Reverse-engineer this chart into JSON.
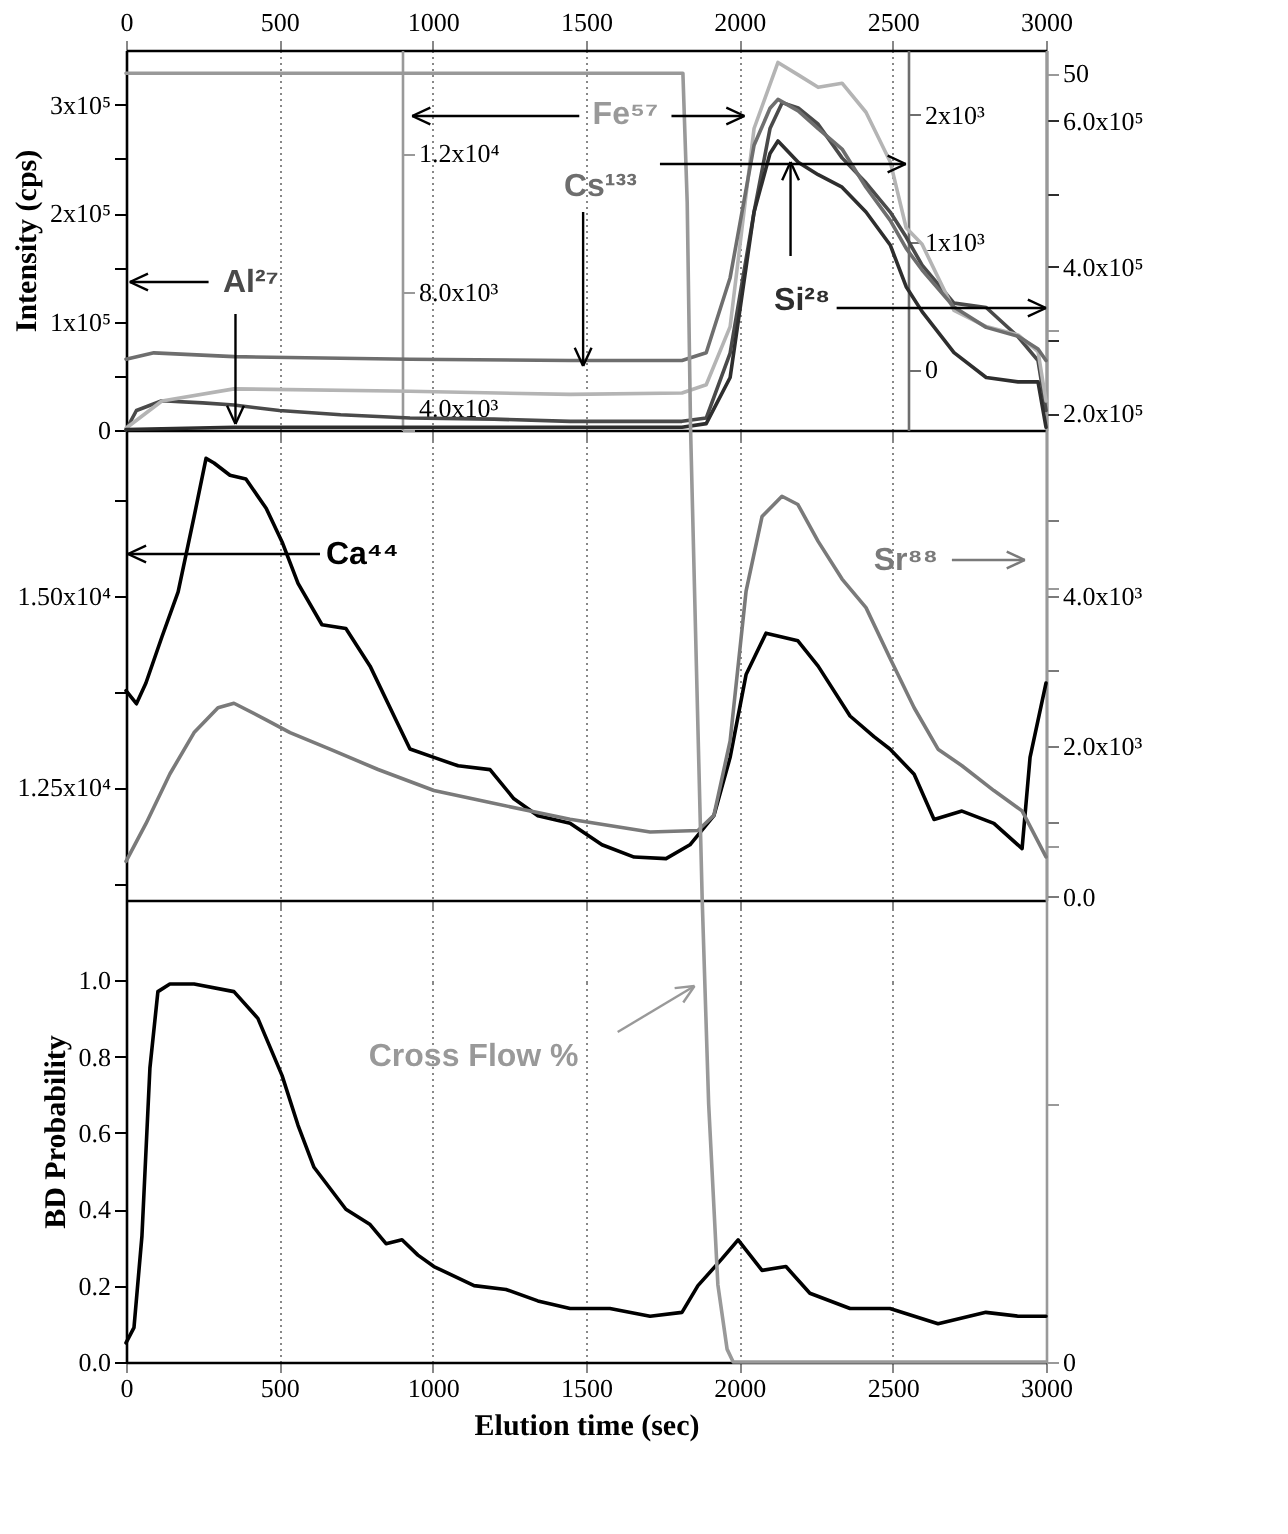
{
  "chart_data": [
    {
      "type": "line",
      "ylabel": "Intensity (cps)",
      "xlim": [
        0,
        3000
      ],
      "xticks": [
        0,
        500,
        1000,
        1500,
        2000,
        2500,
        3000
      ],
      "grid": "x",
      "ylim": [
        0,
        350500
      ],
      "yticks": [
        0,
        {
          "value": 50000,
          "label": null
        },
        {
          "value": 100000,
          "label": "1x10⁵"
        },
        {
          "value": 150000,
          "label": null
        },
        {
          "value": 200000,
          "label": "2x10⁵"
        },
        {
          "value": 250000,
          "label": null
        },
        {
          "value": 300000,
          "label": "3x10⁵"
        }
      ],
      "y2lim": [
        177300,
        696300
      ],
      "y2ticks": [
        {
          "value": 200000,
          "label": "2.0x10⁵"
        },
        {
          "value": 300000,
          "label": null
        },
        {
          "value": 400000,
          "label": "4.0x10⁵"
        },
        {
          "value": 500000,
          "label": null
        },
        {
          "value": 600000,
          "label": "6.0x10⁵"
        }
      ],
      "y3lim": [
        4000,
        14990
      ],
      "y3ticks": [
        {
          "value": 4000,
          "label": "4.0x10³"
        },
        {
          "value": 8000,
          "label": "8.0x10³"
        },
        {
          "value": 12000,
          "label": "1.2x10⁴"
        }
      ],
      "series": [
        {
          "name": "Al²⁷",
          "color": "#4a4a4a",
          "x": [
            0,
            34,
            117,
            250,
            352,
            500,
            700,
            926,
            1200,
            1448,
            1813,
            1892,
            1970,
            2048,
            2100,
            2140,
            2192,
            2257,
            2335,
            2413,
            2492,
            2544,
            2596,
            2700,
            2805,
            2909,
            2974,
            3000
          ],
          "values": [
            0,
            18000,
            27000,
            25000,
            23000,
            18000,
            14000,
            11000,
            10000,
            8000,
            8000,
            11000,
            71000,
            201000,
            278000,
            302000,
            297000,
            282000,
            251000,
            228000,
            201000,
            178000,
            152000,
            117000,
            113000,
            86000,
            64000,
            18000
          ]
        },
        {
          "name": "Fe⁵⁷",
          "color": "#b4b4b4",
          "axis": "y3",
          "x": [
            0,
            117,
            352,
            926,
            1448,
            1813,
            1892,
            1970,
            2048,
            2126,
            2192,
            2257,
            2335,
            2413,
            2492,
            2544,
            2596,
            2700,
            2805,
            2909,
            2974,
            3000
          ],
          "values": [
            4050,
            4840,
            5190,
            5120,
            5030,
            5070,
            5310,
            6990,
            12720,
            14630,
            14270,
            13910,
            14030,
            13190,
            11760,
            9850,
            9370,
            7460,
            6990,
            6750,
            6270,
            4840
          ]
        },
        {
          "name": "Si²⁸",
          "color": "#2e2e2e",
          "axis": "y2",
          "x": [
            0,
            352,
            926,
            1448,
            1813,
            1892,
            1970,
            2048,
            2100,
            2126,
            2192,
            2257,
            2335,
            2413,
            2492,
            2544,
            2596,
            2700,
            2805,
            2909,
            2974,
            3000
          ],
          "values": [
            178000,
            181000,
            181000,
            181000,
            181000,
            186000,
            249000,
            475000,
            555000,
            572000,
            543000,
            526000,
            509000,
            475000,
            430000,
            373000,
            339000,
            283000,
            249000,
            243000,
            243000,
            181000
          ]
        }
      ]
    },
    {
      "type": "line",
      "xlim": [
        0,
        3000
      ],
      "tick_labels": "y",
      "ylim": [
        -476,
        2508
      ],
      "yticks": [
        0,
        {
          "value": 1000,
          "label": "1x10³"
        },
        {
          "value": 2000,
          "label": "2x10³"
        }
      ],
      "series": [
        {
          "name": "Cs¹³³",
          "color": "#6e6e6e",
          "x": [
            0,
            91,
            352,
            926,
            1448,
            1813,
            1892,
            1970,
            2048,
            2100,
            2126,
            2192,
            2257,
            2335,
            2413,
            2492,
            2544,
            2596,
            2700,
            2805,
            2909,
            2974,
            3000
          ],
          "values": [
            80,
            130,
            100,
            80,
            70,
            70,
            130,
            720,
            1760,
            2050,
            2120,
            2030,
            1890,
            1730,
            1430,
            1170,
            950,
            780,
            490,
            330,
            260,
            160,
            70
          ]
        }
      ]
    },
    {
      "type": "line",
      "xlim": [
        0,
        3000
      ],
      "xticks": [
        0,
        500,
        1000,
        1500,
        2000,
        2500,
        3000
      ],
      "grid": "x",
      "tick_labels": "y",
      "ylim": [
        11030,
        17160
      ],
      "yticks": [
        {
          "value": 11250,
          "label": null
        },
        {
          "value": 12500,
          "label": "1.25x10⁴"
        },
        {
          "value": 13750,
          "label": null
        },
        {
          "value": 15000,
          "label": "1.50x10⁴"
        },
        {
          "value": 16250,
          "label": null
        }
      ],
      "y2lim": [
        -44,
        6200
      ],
      "y2ticks": [
        {
          "value": 0,
          "label": "0.0"
        },
        {
          "value": 1000,
          "label": null
        },
        {
          "value": 2000,
          "label": "2.0x10³"
        },
        {
          "value": 3000,
          "label": null
        },
        {
          "value": 4000,
          "label": "4.0x10³"
        },
        {
          "value": 5000,
          "label": null
        }
      ],
      "series": [
        {
          "name": "Ca⁴⁴",
          "color": "#000000",
          "x": [
            0,
            34,
            65,
            117,
            170,
            222,
            261,
            287,
            339,
            391,
            457,
            509,
            561,
            639,
            717,
            796,
            874,
            926,
            1004,
            1083,
            1187,
            1265,
            1343,
            1448,
            1552,
            1657,
            1761,
            1839,
            1917,
            1970,
            2022,
            2087,
            2139,
            2191,
            2257,
            2361,
            2439,
            2491,
            2570,
            2635,
            2726,
            2830,
            2922,
            2948,
            3000
          ],
          "values": [
            13760,
            13590,
            13860,
            14460,
            15050,
            16030,
            16790,
            16730,
            16570,
            16520,
            16140,
            15700,
            15160,
            14620,
            14570,
            14080,
            13430,
            13000,
            12890,
            12780,
            12730,
            12350,
            12130,
            12030,
            11750,
            11590,
            11570,
            11750,
            12130,
            12890,
            13970,
            14510,
            14460,
            14410,
            14080,
            13430,
            13160,
            13000,
            12670,
            12080,
            12190,
            12030,
            11700,
            12890,
            13860
          ]
        },
        {
          "name": "Sr⁸⁸",
          "color": "#7a7a7a",
          "axis": "y2",
          "x": [
            0,
            65,
            143,
            222,
            300,
            352,
            457,
            535,
            665,
            822,
            1004,
            1187,
            1448,
            1709,
            1865,
            1917,
            1970,
            2022,
            2074,
            2139,
            2191,
            2257,
            2335,
            2413,
            2491,
            2570,
            2648,
            2726,
            2830,
            2922,
            3000
          ],
          "values": [
            470,
            970,
            1630,
            2180,
            2510,
            2570,
            2350,
            2180,
            1960,
            1690,
            1410,
            1250,
            1030,
            860,
            880,
            1080,
            2070,
            4060,
            5050,
            5320,
            5210,
            4720,
            4220,
            3840,
            3170,
            2510,
            1960,
            1740,
            1410,
            1140,
            530
          ]
        }
      ]
    },
    {
      "type": "line",
      "xlabel": "Elution time (sec)",
      "ylabel": "BD Probability",
      "xlim": [
        0,
        3000
      ],
      "xticks": [
        0,
        500,
        1000,
        1500,
        2000,
        2500,
        3000
      ],
      "grid": "x",
      "ylim": [
        0,
        1.21
      ],
      "yticks": [
        {
          "value": 0,
          "label": "0.0"
        },
        0.2,
        0.4,
        0.6,
        0.8,
        {
          "value": 1,
          "label": "1.0"
        }
      ],
      "series": [
        {
          "color": "#000000",
          "x": [
            0,
            26,
            52,
            78,
            104,
            143,
            222,
            352,
            430,
            509,
            561,
            613,
            717,
            796,
            848,
            900,
            952,
            1004,
            1135,
            1239,
            1343,
            1448,
            1578,
            1709,
            1813,
            1865,
            1943,
            1996,
            2074,
            2152,
            2230,
            2361,
            2491,
            2648,
            2804,
            2909,
            3000
          ],
          "values": [
            0.05,
            0.09,
            0.33,
            0.77,
            0.97,
            0.99,
            0.99,
            0.97,
            0.9,
            0.75,
            0.62,
            0.51,
            0.4,
            0.36,
            0.31,
            0.32,
            0.28,
            0.25,
            0.2,
            0.19,
            0.16,
            0.14,
            0.14,
            0.12,
            0.13,
            0.2,
            0.27,
            0.32,
            0.24,
            0.25,
            0.18,
            0.14,
            0.14,
            0.1,
            0.13,
            0.12,
            0.12
          ]
        }
      ]
    },
    {
      "type": "line",
      "xlim": [
        0,
        3000
      ],
      "tick_labels": "y",
      "ylim": [
        0,
        50.9
      ],
      "yticks": [
        0,
        {
          "value": 10,
          "label": null
        },
        {
          "value": 20,
          "label": null
        },
        {
          "value": 30,
          "label": null
        },
        {
          "value": 40,
          "label": null
        },
        50
      ],
      "series": [
        {
          "name": "Cross Flow %",
          "color": "#999999",
          "x": [
            0,
            1816,
            1830,
            1841,
            1860,
            1879,
            1900,
            1930,
            1960,
            1980,
            3000
          ],
          "values": [
            50,
            50,
            45,
            36.2,
            27,
            17.9,
            10,
            3,
            0.5,
            0,
            0
          ]
        }
      ]
    }
  ]
}
